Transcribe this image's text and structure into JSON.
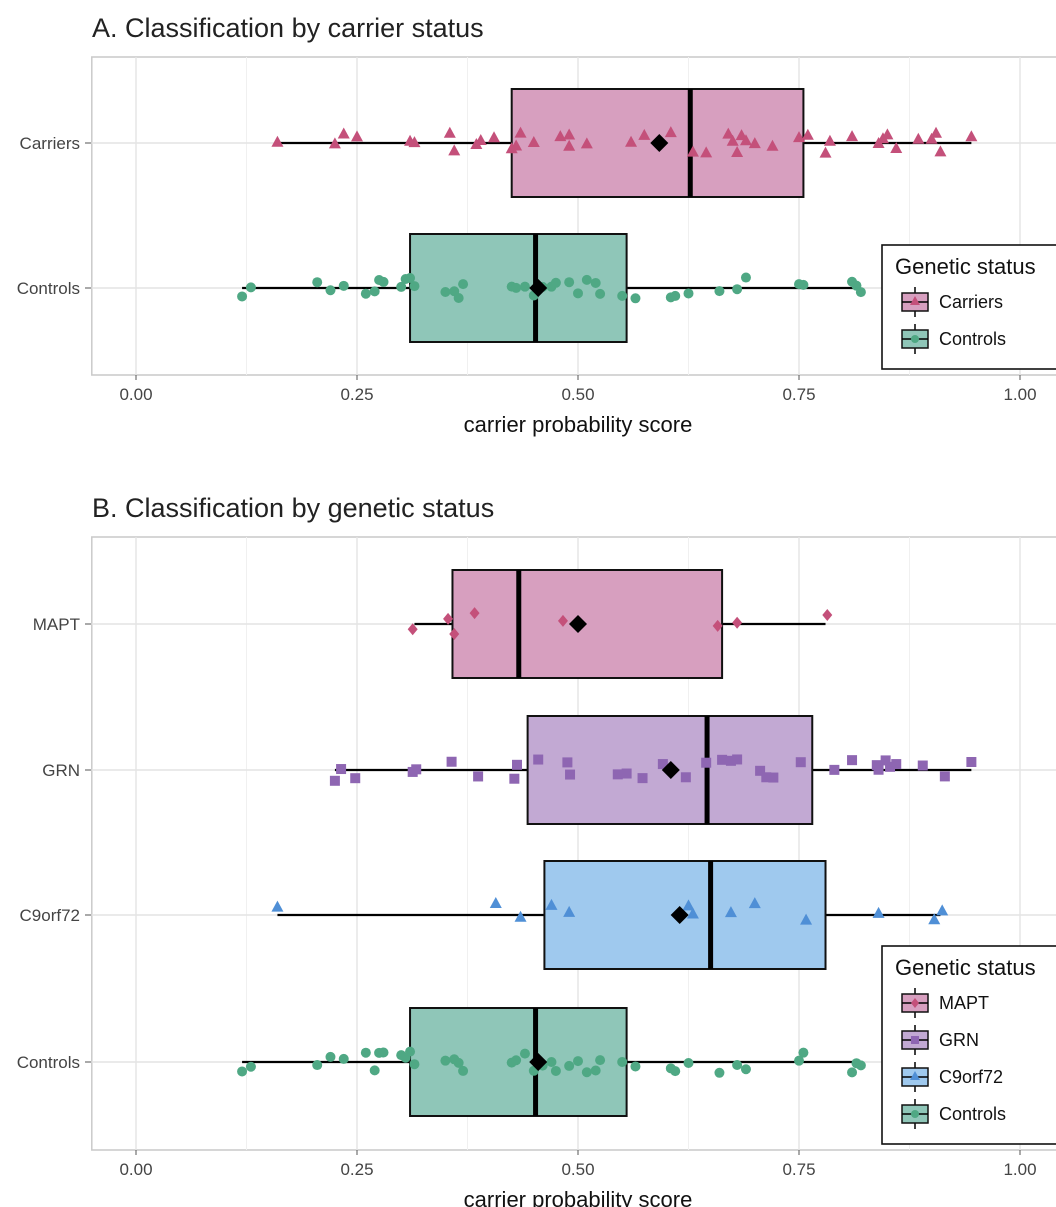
{
  "chart_data": [
    {
      "type": "box",
      "title": "A. Classification by carrier status",
      "xlabel": "carrier probability score",
      "xlim": [
        -0.05,
        1.05
      ],
      "xticks": [
        "0.00",
        "0.25",
        "0.50",
        "0.75",
        "1.00"
      ],
      "grid": true,
      "legend": {
        "title": "Genetic status",
        "position": "right",
        "entries": [
          "Carriers",
          "Controls"
        ]
      },
      "groups": [
        {
          "name": "Carriers",
          "color": "#d79fbf",
          "point_color": "#c4507a",
          "shape": "triangle",
          "whisker": [
            0.16,
            0.945
          ],
          "q1": 0.425,
          "median": 0.627,
          "q3": 0.755,
          "mean": 0.592,
          "points": [
            0.16,
            0.225,
            0.235,
            0.25,
            0.31,
            0.315,
            0.355,
            0.36,
            0.385,
            0.39,
            0.405,
            0.425,
            0.43,
            0.435,
            0.45,
            0.48,
            0.49,
            0.49,
            0.51,
            0.56,
            0.575,
            0.605,
            0.63,
            0.645,
            0.67,
            0.675,
            0.68,
            0.685,
            0.69,
            0.7,
            0.72,
            0.75,
            0.76,
            0.78,
            0.785,
            0.81,
            0.84,
            0.845,
            0.85,
            0.86,
            0.885,
            0.9,
            0.905,
            0.91,
            0.945
          ]
        },
        {
          "name": "Controls",
          "color": "#8fc6b8",
          "point_color": "#4fa884",
          "shape": "circle",
          "whisker": [
            0.12,
            0.82
          ],
          "q1": 0.31,
          "median": 0.452,
          "q3": 0.555,
          "mean": 0.455,
          "points": [
            0.12,
            0.13,
            0.205,
            0.22,
            0.235,
            0.26,
            0.27,
            0.275,
            0.28,
            0.3,
            0.305,
            0.31,
            0.315,
            0.35,
            0.36,
            0.365,
            0.37,
            0.425,
            0.43,
            0.44,
            0.45,
            0.46,
            0.47,
            0.475,
            0.49,
            0.5,
            0.51,
            0.52,
            0.525,
            0.55,
            0.565,
            0.605,
            0.61,
            0.625,
            0.66,
            0.68,
            0.69,
            0.75,
            0.755,
            0.81,
            0.815,
            0.82
          ]
        }
      ]
    },
    {
      "type": "box",
      "title": "B. Classification by genetic status",
      "xlabel": "carrier probability score",
      "xlim": [
        -0.05,
        1.05
      ],
      "xticks": [
        "0.00",
        "0.25",
        "0.50",
        "0.75",
        "1.00"
      ],
      "grid": true,
      "legend": {
        "title": "Genetic status",
        "position": "right",
        "entries": [
          "MAPT",
          "GRN",
          "C9orf72",
          "Controls"
        ]
      },
      "groups": [
        {
          "name": "MAPT",
          "color": "#d79fbf",
          "point_color": "#c4507a",
          "shape": "diamond",
          "whisker": [
            0.315,
            0.78
          ],
          "q1": 0.358,
          "median": 0.433,
          "q3": 0.663,
          "mean": 0.5,
          "points": [
            0.313,
            0.353,
            0.36,
            0.383,
            0.483,
            0.658,
            0.68,
            0.782
          ]
        },
        {
          "name": "GRN",
          "color": "#c2a9d3",
          "point_color": "#8e66b2",
          "shape": "square",
          "whisker": [
            0.225,
            0.945
          ],
          "q1": 0.443,
          "median": 0.646,
          "q3": 0.765,
          "mean": 0.605,
          "points": [
            0.225,
            0.232,
            0.248,
            0.313,
            0.317,
            0.357,
            0.387,
            0.428,
            0.431,
            0.455,
            0.488,
            0.491,
            0.545,
            0.555,
            0.573,
            0.596,
            0.622,
            0.645,
            0.663,
            0.673,
            0.68,
            0.706,
            0.713,
            0.721,
            0.752,
            0.79,
            0.81,
            0.838,
            0.84,
            0.848,
            0.853,
            0.86,
            0.89,
            0.915,
            0.945
          ]
        },
        {
          "name": "C9orf72",
          "color": "#9fc9ee",
          "point_color": "#4f8fd6",
          "shape": "triangle",
          "whisker": [
            0.16,
            0.91
          ],
          "q1": 0.462,
          "median": 0.65,
          "q3": 0.78,
          "mean": 0.615,
          "points": [
            0.16,
            0.407,
            0.435,
            0.47,
            0.49,
            0.625,
            0.63,
            0.673,
            0.7,
            0.758,
            0.84,
            0.903,
            0.912
          ]
        },
        {
          "name": "Controls",
          "color": "#8fc6b8",
          "point_color": "#4fa884",
          "shape": "circle",
          "whisker": [
            0.12,
            0.82
          ],
          "q1": 0.31,
          "median": 0.452,
          "q3": 0.555,
          "mean": 0.455,
          "points": [
            0.12,
            0.13,
            0.205,
            0.22,
            0.235,
            0.26,
            0.27,
            0.275,
            0.28,
            0.3,
            0.305,
            0.31,
            0.315,
            0.35,
            0.36,
            0.365,
            0.37,
            0.425,
            0.43,
            0.44,
            0.45,
            0.46,
            0.47,
            0.475,
            0.49,
            0.5,
            0.51,
            0.52,
            0.525,
            0.55,
            0.565,
            0.605,
            0.61,
            0.625,
            0.66,
            0.68,
            0.69,
            0.75,
            0.755,
            0.81,
            0.815,
            0.82
          ]
        }
      ]
    }
  ]
}
